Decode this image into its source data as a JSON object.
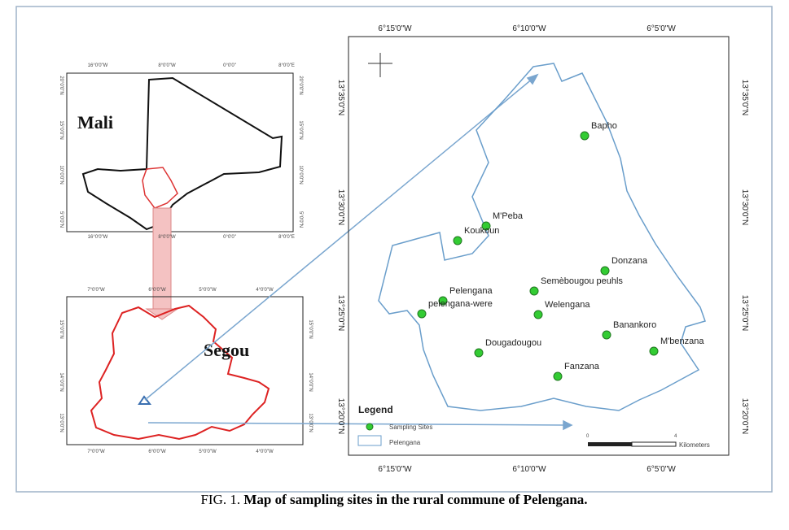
{
  "mali_map": {
    "label": "Mali",
    "top_ticks": [
      "16°0'0\"W",
      "8°0'0\"W",
      "0°0'0\"",
      "8°0'0\"E"
    ],
    "left_ticks": [
      "20°0'0\"N",
      "15°0'0\"N",
      "10°0'0\"N",
      "5°0'0\"N"
    ]
  },
  "segou_map": {
    "label": "Segou",
    "bottom_ticks": [
      "7°0'0\"W",
      "6°0'0\"W",
      "5°0'0\"W",
      "4°0'0\"W"
    ],
    "left_ticks": [
      "15°0'0\"N",
      "14°0'0\"N",
      "13°0'0\"N"
    ]
  },
  "main_map": {
    "lon_ticks": [
      "6°15'0\"W",
      "6°10'0\"W",
      "6°5'0\"W"
    ],
    "lat_ticks": [
      "13°35'0\"N",
      "13°30'0\"N",
      "13°25'0\"N",
      "13°20'0\"N"
    ],
    "sites": [
      "Bapho",
      "M'Peba",
      "Koukoun",
      "Donzana",
      "Semèbougou peuhls",
      "Pelengana",
      "pelengana-were",
      "Welengana",
      "Banankoro",
      "M'benzana",
      "Dougadougou",
      "Fanzana"
    ],
    "legend": {
      "title": "Legend",
      "items": [
        "Sampling Sites",
        "Pelengana"
      ]
    },
    "scale": {
      "start": "0",
      "end": "4",
      "unit": "Kilometers"
    }
  },
  "caption": {
    "prefix": "FIG. 1.",
    "text": "Map of sampling sites in the rural commune of Pelengana."
  }
}
